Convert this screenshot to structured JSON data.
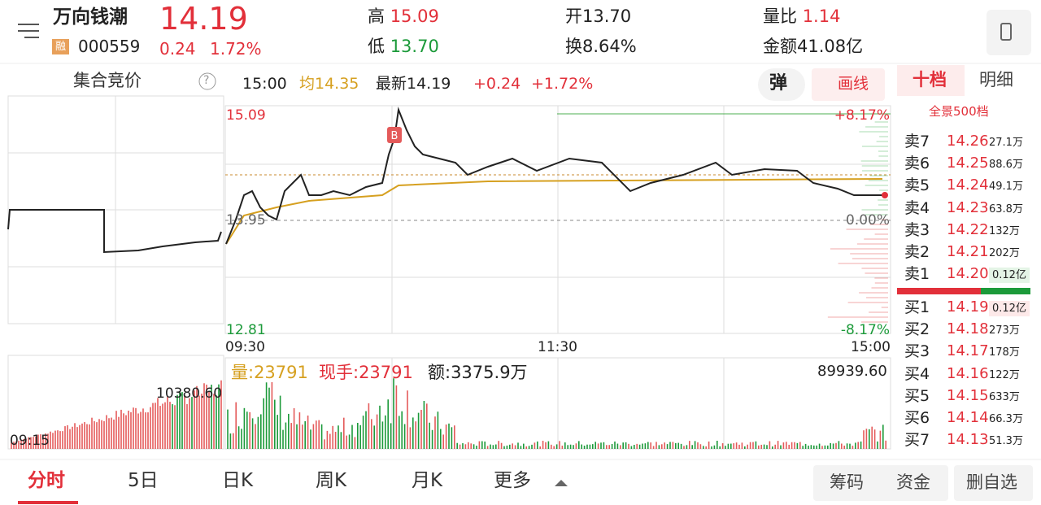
{
  "header": {
    "name": "万向钱潮",
    "price": "14.19",
    "badge": "融",
    "code": "000559",
    "change": "0.24",
    "change_pct": "1.72%",
    "high_label": "高",
    "high": "15.09",
    "low_label": "低",
    "low": "13.70",
    "open_label": "开",
    "open": "13.70",
    "turnover_label": "换",
    "turnover": "8.64%",
    "vol_ratio_label": "量比",
    "vol_ratio": "1.14",
    "amount_label": "金额",
    "amount": "41.08亿"
  },
  "subbar": {
    "auction": "集合竞价",
    "help": "?",
    "time": "15:00",
    "avg": "均14.35",
    "latest": "最新14.19",
    "change": "+0.24",
    "change_pct": "+1.72%",
    "popup": "弹",
    "draw": "画线"
  },
  "chart": {
    "price_top": "15.09",
    "price_mid": "13.95",
    "price_bottom": "12.81",
    "pct_top": "+8.17%",
    "pct_mid": "0.00%",
    "pct_bottom": "-8.17%",
    "times": [
      "09:30",
      "11:30",
      "15:00"
    ],
    "auction_vol": "10380.60",
    "auction_time": "09:15",
    "vol": "量:23791",
    "now_vol": "现手:23791",
    "amount": "额:3375.9万",
    "vol_max": "89939.60"
  },
  "orderbook": {
    "tabs": [
      "十档",
      "明细"
    ],
    "full": "全景500档",
    "sell": [
      [
        "卖7",
        "14.26",
        "27.1万"
      ],
      [
        "卖6",
        "14.25",
        "88.6万"
      ],
      [
        "卖5",
        "14.24",
        "49.1万"
      ],
      [
        "卖4",
        "14.23",
        "63.8万"
      ],
      [
        "卖3",
        "14.22",
        "132万"
      ],
      [
        "卖2",
        "14.21",
        "202万"
      ],
      [
        "卖1",
        "14.20",
        "0.12亿"
      ]
    ],
    "buy": [
      [
        "买1",
        "14.19",
        "0.12亿"
      ],
      [
        "买2",
        "14.18",
        "273万"
      ],
      [
        "买3",
        "14.17",
        "178万"
      ],
      [
        "买4",
        "14.16",
        "122万"
      ],
      [
        "买5",
        "14.15",
        "633万"
      ],
      [
        "买6",
        "14.14",
        "66.3万"
      ],
      [
        "买7",
        "14.13",
        "51.3万"
      ]
    ]
  },
  "tabs": [
    "分时",
    "5日",
    "日K",
    "周K",
    "月K",
    "更多"
  ],
  "actions": [
    "筹码",
    "资金",
    "删自选"
  ]
}
